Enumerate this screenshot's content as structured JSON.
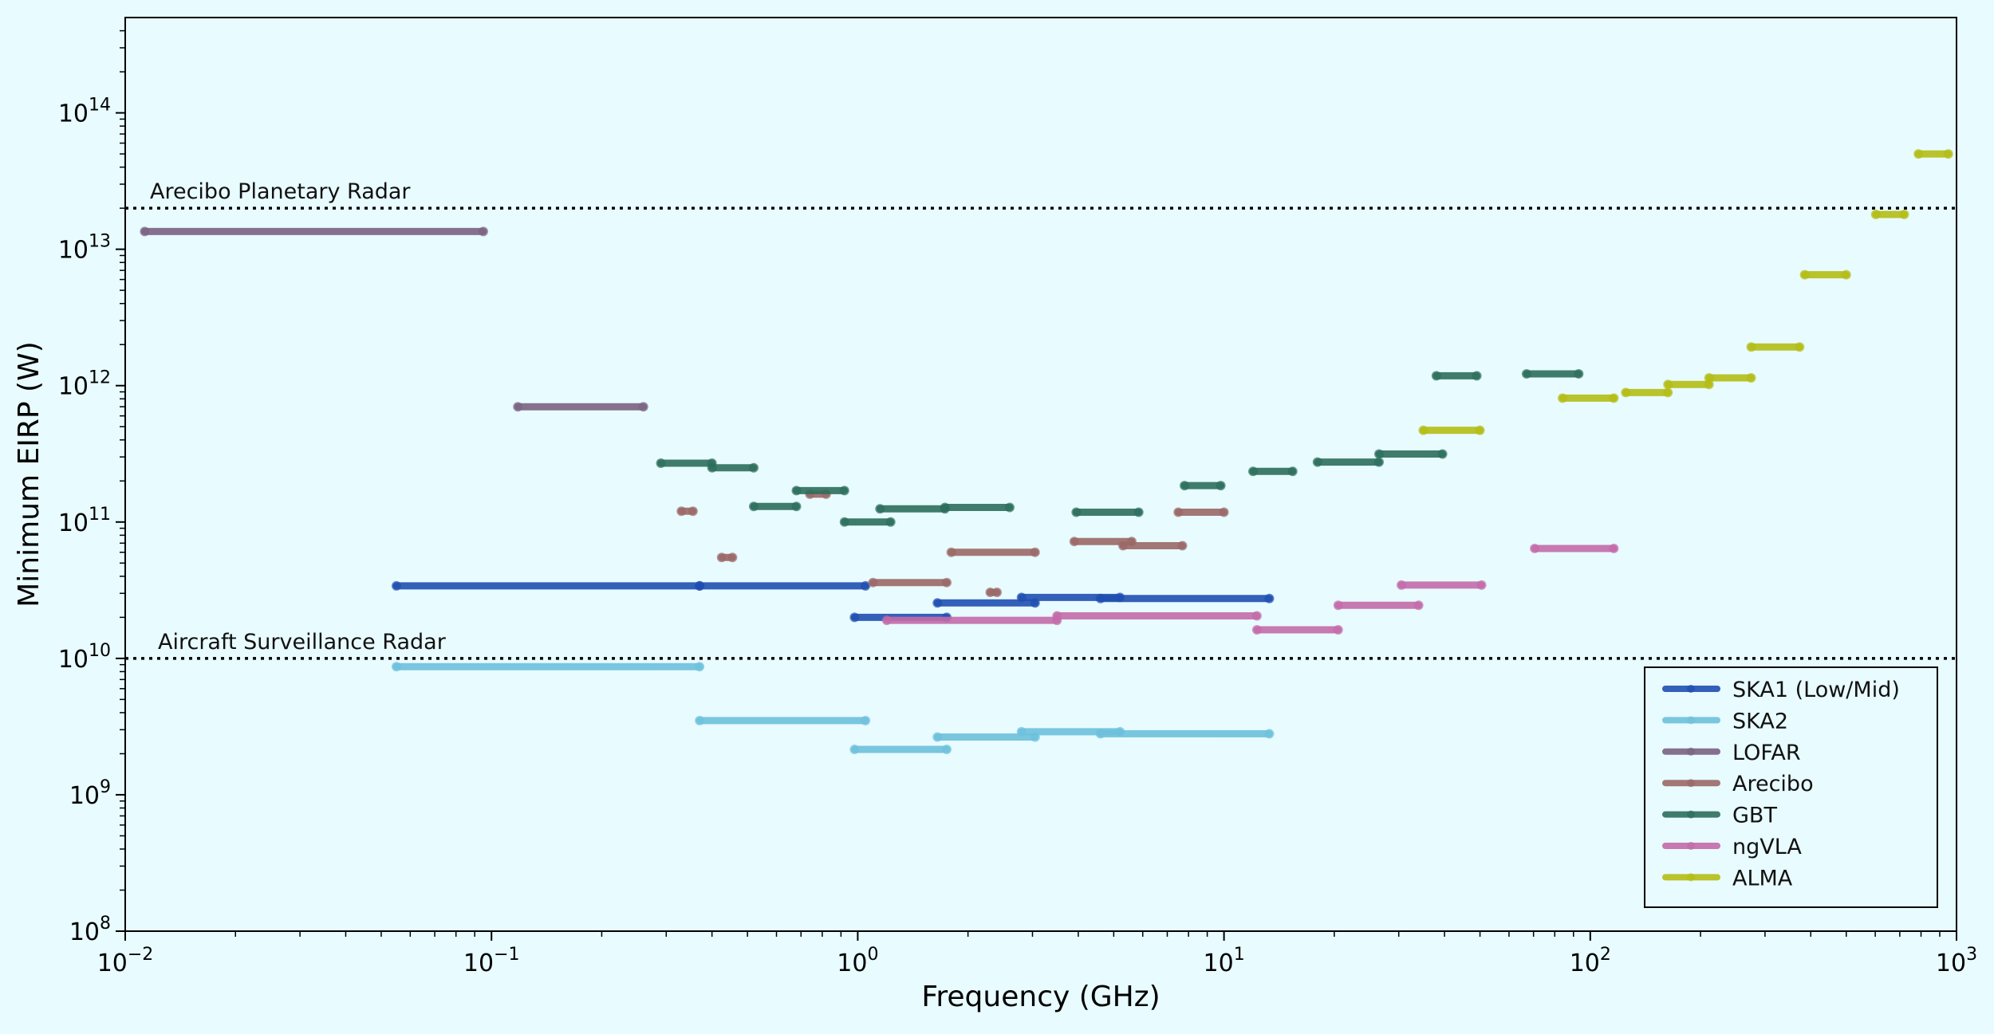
{
  "chart_data": {
    "type": "line",
    "title": "",
    "xlabel": "Frequency (GHz)",
    "ylabel": "Minimum EIRP (W)",
    "xscale": "log",
    "yscale": "log",
    "xlim": [
      0.01,
      1000
    ],
    "ylim": [
      100000000.0,
      500000000000000.0
    ],
    "grid": false,
    "legend_position": "lower-right",
    "colors": {
      "background": "#e8fbff",
      "frame": "#000000",
      "reference_line": "#000000"
    },
    "x_ticks": [
      {
        "value": 0.01,
        "base": "10",
        "exp": "−2"
      },
      {
        "value": 0.1,
        "base": "10",
        "exp": "−1"
      },
      {
        "value": 1,
        "base": "10",
        "exp": "0"
      },
      {
        "value": 10,
        "base": "10",
        "exp": "1"
      },
      {
        "value": 100,
        "base": "10",
        "exp": "2"
      },
      {
        "value": 1000,
        "base": "10",
        "exp": "3"
      }
    ],
    "y_ticks": [
      {
        "value": 100000000.0,
        "base": "10",
        "exp": "8"
      },
      {
        "value": 1000000000.0,
        "base": "10",
        "exp": "9"
      },
      {
        "value": 10000000000.0,
        "base": "10",
        "exp": "10"
      },
      {
        "value": 100000000000.0,
        "base": "10",
        "exp": "11"
      },
      {
        "value": 1000000000000.0,
        "base": "10",
        "exp": "12"
      },
      {
        "value": 10000000000000.0,
        "base": "10",
        "exp": "13"
      },
      {
        "value": 100000000000000.0,
        "base": "10",
        "exp": "14"
      }
    ],
    "reference_lines": [
      {
        "label": "Arecibo Planetary Radar",
        "y": 20000000000000.0
      },
      {
        "label": "Aircraft Surveillance Radar",
        "y": 10000000000.0
      }
    ],
    "series": [
      {
        "name": "SKA1  (Low/Mid)",
        "color": "#1f4fb0",
        "segments": [
          {
            "x1": 0.055,
            "x2": 0.37,
            "y": 34000000000.0
          },
          {
            "x1": 0.37,
            "x2": 1.05,
            "y": 34000000000.0
          },
          {
            "x1": 0.98,
            "x2": 1.75,
            "y": 20000000000.0
          },
          {
            "x1": 1.65,
            "x2": 3.05,
            "y": 25500000000.0
          },
          {
            "x1": 2.8,
            "x2": 5.2,
            "y": 28000000000.0
          },
          {
            "x1": 4.6,
            "x2": 13.3,
            "y": 27500000000.0
          }
        ]
      },
      {
        "name": "SKA2",
        "color": "#6dc0dc",
        "segments": [
          {
            "x1": 0.055,
            "x2": 0.37,
            "y": 8700000000.0
          },
          {
            "x1": 0.37,
            "x2": 1.05,
            "y": 3500000000.0
          },
          {
            "x1": 0.98,
            "x2": 1.75,
            "y": 2150000000.0
          },
          {
            "x1": 1.65,
            "x2": 3.05,
            "y": 2650000000.0
          },
          {
            "x1": 2.8,
            "x2": 5.2,
            "y": 2900000000.0
          },
          {
            "x1": 4.6,
            "x2": 13.3,
            "y": 2800000000.0
          }
        ]
      },
      {
        "name": "LOFAR",
        "color": "#7a6282",
        "segments": [
          {
            "x1": 0.0113,
            "x2": 0.095,
            "y": 13500000000000.0
          },
          {
            "x1": 0.118,
            "x2": 0.26,
            "y": 700000000000.0
          }
        ]
      },
      {
        "name": "Arecibo",
        "color": "#9a6866",
        "segments": [
          {
            "x1": 0.33,
            "x2": 0.355,
            "y": 120000000000.0
          },
          {
            "x1": 0.425,
            "x2": 0.455,
            "y": 55000000000.0
          },
          {
            "x1": 0.74,
            "x2": 0.82,
            "y": 160000000000.0
          },
          {
            "x1": 1.1,
            "x2": 1.75,
            "y": 36000000000.0
          },
          {
            "x1": 2.3,
            "x2": 2.4,
            "y": 30500000000.0
          },
          {
            "x1": 1.8,
            "x2": 3.05,
            "y": 60000000000.0
          },
          {
            "x1": 3.9,
            "x2": 5.6,
            "y": 72000000000.0
          },
          {
            "x1": 5.3,
            "x2": 7.7,
            "y": 67000000000.0
          },
          {
            "x1": 7.5,
            "x2": 10.0,
            "y": 118000000000.0
          }
        ]
      },
      {
        "name": "GBT",
        "color": "#2c6e5c",
        "segments": [
          {
            "x1": 0.29,
            "x2": 0.4,
            "y": 270000000000.0
          },
          {
            "x1": 0.4,
            "x2": 0.52,
            "y": 250000000000.0
          },
          {
            "x1": 0.52,
            "x2": 0.68,
            "y": 130000000000.0
          },
          {
            "x1": 0.68,
            "x2": 0.92,
            "y": 170000000000.0
          },
          {
            "x1": 0.92,
            "x2": 1.23,
            "y": 100000000000.0
          },
          {
            "x1": 1.15,
            "x2": 1.73,
            "y": 125000000000.0
          },
          {
            "x1": 1.73,
            "x2": 2.6,
            "y": 128000000000.0
          },
          {
            "x1": 3.95,
            "x2": 5.85,
            "y": 118000000000.0
          },
          {
            "x1": 7.8,
            "x2": 9.8,
            "y": 185000000000.0
          },
          {
            "x1": 12.0,
            "x2": 15.4,
            "y": 235000000000.0
          },
          {
            "x1": 18.0,
            "x2": 26.5,
            "y": 275000000000.0
          },
          {
            "x1": 26.5,
            "x2": 39.5,
            "y": 315000000000.0
          },
          {
            "x1": 38.0,
            "x2": 49.0,
            "y": 1180000000000.0
          },
          {
            "x1": 67.0,
            "x2": 93.0,
            "y": 1220000000000.0
          }
        ]
      },
      {
        "name": "ngVLA",
        "color": "#c36aa8",
        "segments": [
          {
            "x1": 1.2,
            "x2": 3.5,
            "y": 19000000000.0
          },
          {
            "x1": 3.5,
            "x2": 12.3,
            "y": 20500000000.0
          },
          {
            "x1": 12.3,
            "x2": 20.5,
            "y": 16200000000.0
          },
          {
            "x1": 20.5,
            "x2": 34.0,
            "y": 24500000000.0
          },
          {
            "x1": 30.5,
            "x2": 50.5,
            "y": 34500000000.0
          },
          {
            "x1": 70.5,
            "x2": 116.0,
            "y": 64000000000.0
          }
        ]
      },
      {
        "name": "ALMA",
        "color": "#b4bc14",
        "segments": [
          {
            "x1": 35.0,
            "x2": 50.0,
            "y": 470000000000.0
          },
          {
            "x1": 84.0,
            "x2": 116.0,
            "y": 810000000000.0
          },
          {
            "x1": 125.0,
            "x2": 163.0,
            "y": 890000000000.0
          },
          {
            "x1": 163.0,
            "x2": 211.0,
            "y": 1020000000000.0
          },
          {
            "x1": 211.0,
            "x2": 275.0,
            "y": 1140000000000.0
          },
          {
            "x1": 275.0,
            "x2": 373.0,
            "y": 1920000000000.0
          },
          {
            "x1": 385.0,
            "x2": 500.0,
            "y": 6500000000000.0
          },
          {
            "x1": 602.0,
            "x2": 720.0,
            "y": 18000000000000.0
          },
          {
            "x1": 787.0,
            "x2": 950.0,
            "y": 50000000000000.0
          }
        ]
      }
    ]
  }
}
